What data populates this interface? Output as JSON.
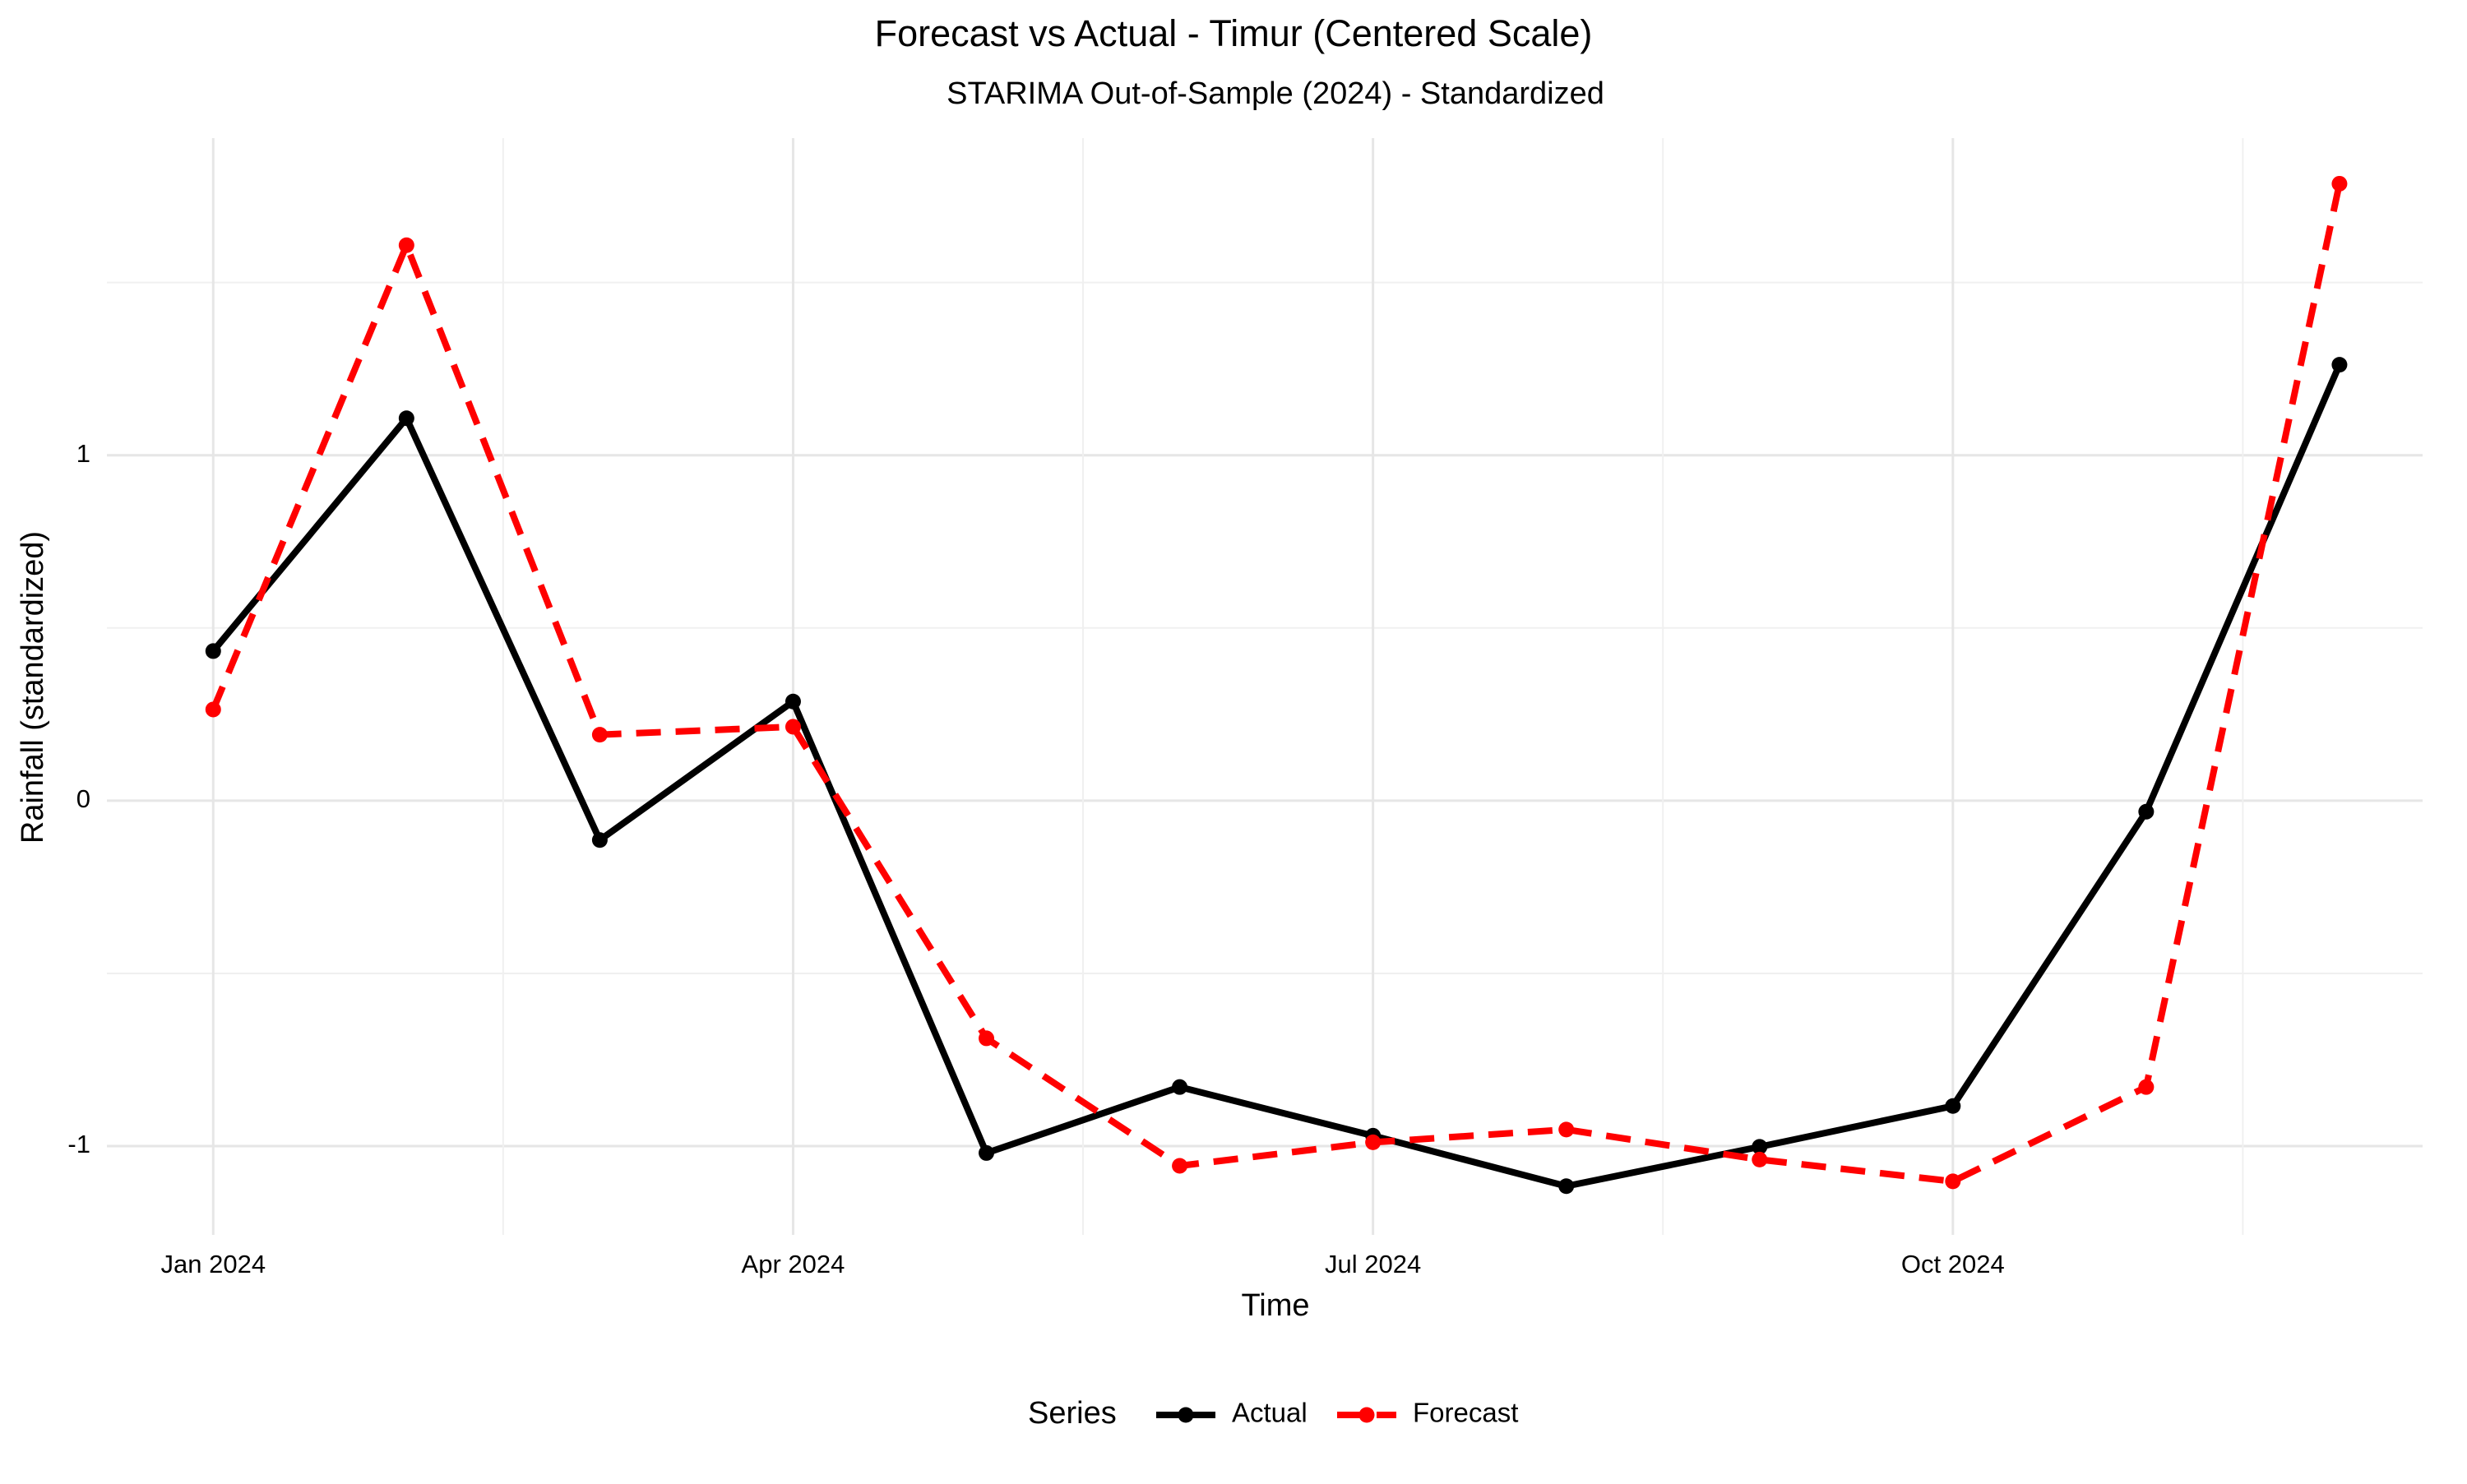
{
  "chart_data": {
    "type": "line",
    "title": "Forecast vs Actual - Timur (Centered Scale)",
    "subtitle": "STARIMA Out-of-Sample (2024) - Standardized",
    "x_label": "Time",
    "y_label": "Rainfall (standardized)",
    "legend_title": "Series",
    "legend_position": "bottom",
    "grid": true,
    "categories": [
      "Jan 2024",
      null,
      null,
      "Apr 2024",
      null,
      null,
      "Jul 2024",
      null,
      null,
      "Oct 2024",
      null,
      null
    ],
    "series": [
      {
        "name": "Actual",
        "color": "#000000",
        "dash": false,
        "values": [
          0.433,
          1.107,
          -0.114,
          0.287,
          -1.02,
          -0.829,
          -0.97,
          -1.116,
          -1.002,
          -0.884,
          -0.032,
          1.262
        ]
      },
      {
        "name": "Forecast",
        "color": "#ff0000",
        "dash": true,
        "values": [
          0.264,
          1.608,
          0.191,
          0.214,
          -0.688,
          -1.057,
          -0.989,
          -0.952,
          -1.039,
          -1.102,
          -0.829,
          1.786
        ]
      }
    ],
    "ylim": [
      -1.257,
      1.918
    ],
    "yticks": [
      -1,
      0,
      1
    ]
  }
}
